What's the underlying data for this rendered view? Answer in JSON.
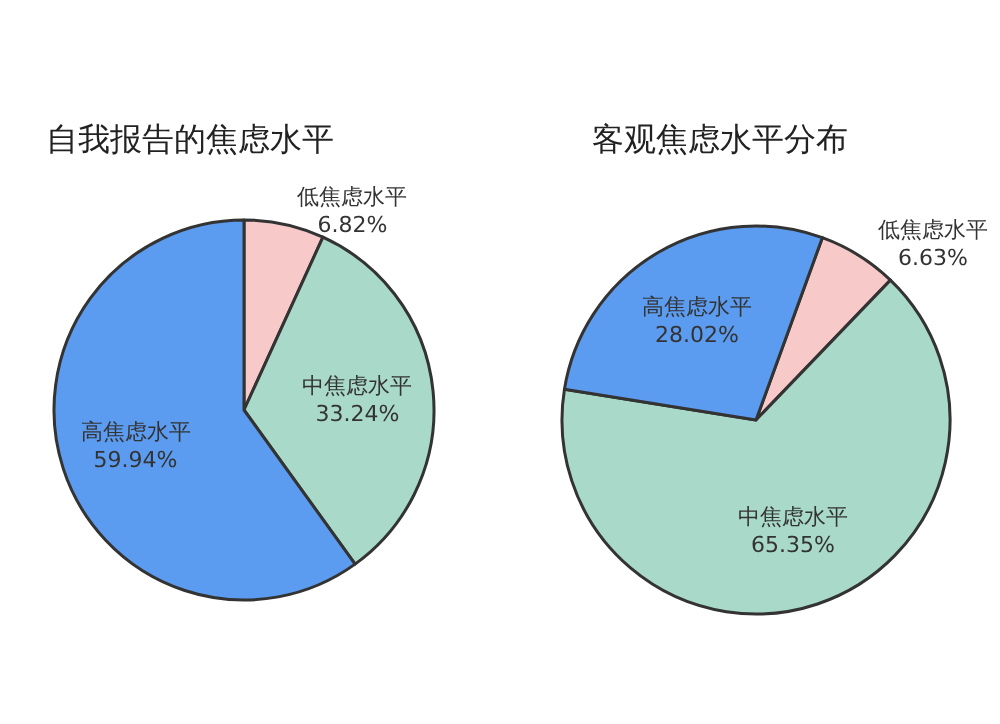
{
  "chart_data": [
    {
      "type": "pie",
      "title": "自我报告的焦虑水平",
      "categories": [
        "低焦虑水平",
        "中焦虑水平",
        "高焦虑水平"
      ],
      "values": [
        6.82,
        33.24,
        59.94
      ],
      "value_labels": [
        "6.82%",
        "33.24%",
        "59.94%"
      ],
      "colors": [
        "#f7c9c9",
        "#a9d9c9",
        "#5c9cf0"
      ]
    },
    {
      "type": "pie",
      "title": "客观焦虑水平分布",
      "categories": [
        "低焦虑水平",
        "中焦虑水平",
        "高焦虑水平"
      ],
      "values": [
        6.63,
        65.35,
        28.02
      ],
      "value_labels": [
        "6.63%",
        "65.35%",
        "28.02%"
      ],
      "colors": [
        "#f7c9c9",
        "#a9d9c9",
        "#5c9cf0"
      ]
    }
  ]
}
